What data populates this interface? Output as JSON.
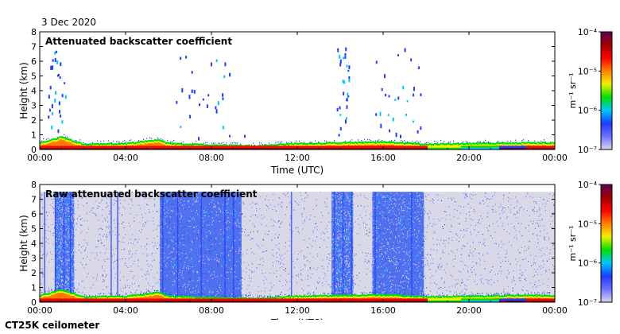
{
  "header": {
    "date": "3 Dec 2020"
  },
  "footer": {
    "instrument": "CT25K ceilometer"
  },
  "colors": {
    "background_fill": "#d8d8e6",
    "colormap": [
      "#d8d8f0",
      "#7070ff",
      "#1c3cff",
      "#00c8ff",
      "#00e000",
      "#f0f000",
      "#ff8000",
      "#ff0000",
      "#a00000",
      "#5a0058"
    ]
  },
  "chart_data": [
    {
      "type": "heatmap",
      "title": "Attenuated backscatter coefficient",
      "xlabel": "Time (UTC)",
      "ylabel": "Height (km)",
      "xticks": [
        "00:00",
        "04:00",
        "08:00",
        "12:00",
        "16:00",
        "20:00",
        "00:00"
      ],
      "xlim_hours": [
        0,
        24
      ],
      "yticks": [
        "0",
        "1",
        "2",
        "3",
        "4",
        "5",
        "6",
        "7",
        "8"
      ],
      "ylim_km": [
        0,
        8
      ],
      "colorbar": {
        "label": "m⁻¹ sr⁻¹",
        "scale": "log",
        "range": [
          1e-07,
          0.0001
        ],
        "ticks": [
          "10⁻⁷",
          "10⁻⁶",
          "10⁻⁵",
          "10⁻⁴"
        ]
      },
      "background": "none",
      "boundary_layer_top_km": [
        {
          "t": 0,
          "h": 0.5
        },
        {
          "t": 1,
          "h": 0.9
        },
        {
          "t": 2,
          "h": 0.4
        },
        {
          "t": 4,
          "h": 0.45
        },
        {
          "t": 5.5,
          "h": 0.7
        },
        {
          "t": 6,
          "h": 0.45
        },
        {
          "t": 8,
          "h": 0.35
        },
        {
          "t": 10,
          "h": 0.3
        },
        {
          "t": 12,
          "h": 0.45
        },
        {
          "t": 14,
          "h": 0.5
        },
        {
          "t": 16,
          "h": 0.55
        },
        {
          "t": 18,
          "h": 0.4
        },
        {
          "t": 20,
          "h": 0.45
        },
        {
          "t": 22,
          "h": 0.5
        },
        {
          "t": 24,
          "h": 0.5
        }
      ],
      "cloud_bursts_hours": [
        [
          0.3,
          1.2
        ],
        [
          6.2,
          9.6
        ],
        [
          13.8,
          14.4
        ],
        [
          15.6,
          17.8
        ]
      ]
    },
    {
      "type": "heatmap",
      "title": "Raw attenuated backscatter coefficient",
      "xlabel": "Time (UTC)",
      "ylabel": "Height (km)",
      "xticks": [
        "00:00",
        "04:00",
        "08:00",
        "12:00",
        "16:00",
        "20:00",
        "00:00"
      ],
      "xlim_hours": [
        0,
        24
      ],
      "yticks": [
        "0",
        "1",
        "2",
        "3",
        "4",
        "5",
        "6",
        "7",
        "8"
      ],
      "ylim_km": [
        0,
        8
      ],
      "colorbar": {
        "label": "m⁻¹ sr⁻¹",
        "scale": "log",
        "range": [
          1e-07,
          0.0001
        ],
        "ticks": [
          "10⁻⁷",
          "10⁻⁶",
          "10⁻⁵",
          "10⁻⁴"
        ]
      },
      "background": "noise",
      "noise_ceiling_km": 7.5,
      "dense_noise_bands_hours": [
        [
          0.7,
          1.6
        ],
        [
          5.6,
          9.4
        ],
        [
          13.6,
          14.6
        ],
        [
          15.5,
          17.9
        ]
      ],
      "vertical_streaks_hours": [
        0.2,
        0.7,
        1.1,
        1.4,
        3.3,
        3.6,
        5.7,
        6.4,
        7.5,
        8.6,
        9.0,
        11.7,
        13.7,
        14.1,
        14.5,
        15.6,
        17.3
      ]
    }
  ]
}
